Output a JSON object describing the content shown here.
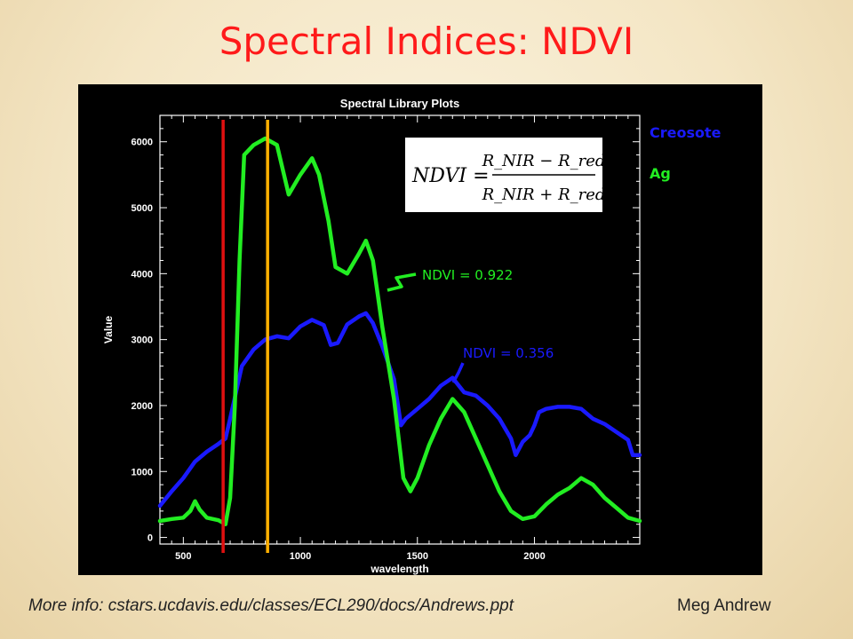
{
  "slide": {
    "title": "Spectral Indices:  NDVI",
    "footer_link": "More info: cstars.ucdavis.edu/classes/ECL290/docs/Andrews.ppt",
    "footer_author": "Meg Andrew"
  },
  "colors": {
    "title": "#ff1a1a",
    "creosote": "#1a1aff",
    "ag": "#22ee22",
    "red_band_line": "#e01010",
    "nir_band_line": "#ffb000"
  },
  "chart_data": {
    "type": "line",
    "title": "Spectral Library Plots",
    "xlabel": "wavelength",
    "ylabel": "Value",
    "xlim": [
      400,
      2450
    ],
    "ylim": [
      -100,
      6400
    ],
    "x_ticks": [
      500,
      1000,
      1500,
      2000
    ],
    "y_ticks": [
      0,
      1000,
      2000,
      3000,
      4000,
      5000,
      6000
    ],
    "legend": {
      "placement": "right",
      "entries": [
        "Creosote",
        "Ag"
      ]
    },
    "vertical_lines": [
      {
        "x": 670,
        "color": "red"
      },
      {
        "x": 860,
        "color": "orange"
      }
    ],
    "series": [
      {
        "name": "Creosote",
        "color": "#1a1aff",
        "points": [
          [
            400,
            480
          ],
          [
            450,
            700
          ],
          [
            500,
            900
          ],
          [
            550,
            1150
          ],
          [
            600,
            1300
          ],
          [
            650,
            1420
          ],
          [
            680,
            1500
          ],
          [
            700,
            1800
          ],
          [
            750,
            2600
          ],
          [
            800,
            2850
          ],
          [
            850,
            3000
          ],
          [
            900,
            3050
          ],
          [
            950,
            3020
          ],
          [
            1000,
            3200
          ],
          [
            1050,
            3300
          ],
          [
            1100,
            3220
          ],
          [
            1130,
            2920
          ],
          [
            1160,
            2950
          ],
          [
            1200,
            3230
          ],
          [
            1250,
            3350
          ],
          [
            1280,
            3400
          ],
          [
            1310,
            3250
          ],
          [
            1350,
            2900
          ],
          [
            1400,
            2400
          ],
          [
            1430,
            1700
          ],
          [
            1450,
            1800
          ],
          [
            1500,
            1950
          ],
          [
            1550,
            2100
          ],
          [
            1600,
            2300
          ],
          [
            1650,
            2420
          ],
          [
            1700,
            2200
          ],
          [
            1750,
            2150
          ],
          [
            1800,
            2000
          ],
          [
            1850,
            1800
          ],
          [
            1900,
            1500
          ],
          [
            1920,
            1250
          ],
          [
            1950,
            1450
          ],
          [
            1980,
            1550
          ],
          [
            2000,
            1700
          ],
          [
            2020,
            1900
          ],
          [
            2050,
            1950
          ],
          [
            2100,
            1980
          ],
          [
            2150,
            1980
          ],
          [
            2200,
            1950
          ],
          [
            2250,
            1800
          ],
          [
            2300,
            1720
          ],
          [
            2350,
            1600
          ],
          [
            2400,
            1480
          ],
          [
            2420,
            1250
          ],
          [
            2450,
            1250
          ]
        ]
      },
      {
        "name": "Ag",
        "color": "#22ee22",
        "points": [
          [
            400,
            250
          ],
          [
            450,
            280
          ],
          [
            500,
            300
          ],
          [
            530,
            400
          ],
          [
            550,
            550
          ],
          [
            570,
            420
          ],
          [
            600,
            300
          ],
          [
            650,
            260
          ],
          [
            680,
            200
          ],
          [
            700,
            600
          ],
          [
            720,
            2000
          ],
          [
            740,
            4200
          ],
          [
            760,
            5800
          ],
          [
            800,
            5950
          ],
          [
            850,
            6050
          ],
          [
            900,
            5950
          ],
          [
            950,
            5200
          ],
          [
            1000,
            5500
          ],
          [
            1050,
            5750
          ],
          [
            1080,
            5500
          ],
          [
            1120,
            4800
          ],
          [
            1150,
            4100
          ],
          [
            1200,
            4000
          ],
          [
            1250,
            4300
          ],
          [
            1280,
            4500
          ],
          [
            1310,
            4200
          ],
          [
            1350,
            3200
          ],
          [
            1400,
            2100
          ],
          [
            1440,
            900
          ],
          [
            1470,
            700
          ],
          [
            1500,
            900
          ],
          [
            1550,
            1400
          ],
          [
            1600,
            1800
          ],
          [
            1650,
            2100
          ],
          [
            1700,
            1900
          ],
          [
            1750,
            1500
          ],
          [
            1800,
            1100
          ],
          [
            1850,
            700
          ],
          [
            1900,
            400
          ],
          [
            1950,
            280
          ],
          [
            2000,
            320
          ],
          [
            2050,
            500
          ],
          [
            2100,
            650
          ],
          [
            2150,
            750
          ],
          [
            2200,
            900
          ],
          [
            2250,
            800
          ],
          [
            2300,
            600
          ],
          [
            2350,
            450
          ],
          [
            2400,
            300
          ],
          [
            2450,
            250
          ]
        ]
      }
    ],
    "annotations": [
      {
        "text": "NDVI = 0.922",
        "color": "#22ee22"
      },
      {
        "text": "NDVI = 0.356",
        "color": "#1a1aff"
      }
    ],
    "equation": {
      "lhs": "NDVI =",
      "numerator": "R_NIR − R_red",
      "denominator": "R_NIR + R_red"
    }
  }
}
